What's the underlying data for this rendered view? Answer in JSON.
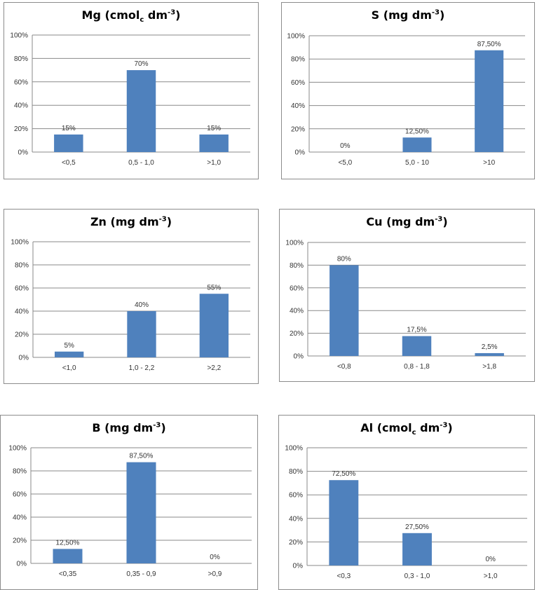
{
  "chart_data": [
    {
      "type": "bar",
      "title": {
        "main": "Mg (cmol",
        "sub": "c",
        "tail": " dm",
        "sup": "-3",
        "end": ")"
      },
      "categories": [
        "<0,5",
        "0,5 - 1,0",
        ">1,0"
      ],
      "values": [
        15,
        70,
        15
      ],
      "labels": [
        "15%",
        "70%",
        "15%"
      ],
      "yticks": [
        "0%",
        "20%",
        "40%",
        "60%",
        "80%",
        "100%"
      ],
      "ylim": [
        0,
        100
      ],
      "color": "#4f81bd"
    },
    {
      "type": "bar",
      "title": {
        "main": "S (mg dm",
        "sub": "",
        "tail": "",
        "sup": "-3",
        "end": ")"
      },
      "categories": [
        "<5,0",
        "5,0 - 10",
        ">10"
      ],
      "values": [
        0,
        12.5,
        87.5
      ],
      "labels": [
        "0%",
        "12,50%",
        "87,50%"
      ],
      "yticks": [
        "0%",
        "20%",
        "40%",
        "60%",
        "80%",
        "100%"
      ],
      "ylim": [
        0,
        100
      ],
      "color": "#4f81bd"
    },
    {
      "type": "bar",
      "title": {
        "main": "Zn (mg dm",
        "sub": "",
        "tail": "",
        "sup": "-3",
        "end": ")"
      },
      "categories": [
        "<1,0",
        "1,0 - 2,2",
        ">2,2"
      ],
      "values": [
        5,
        40,
        55
      ],
      "labels": [
        "5%",
        "40%",
        "55%"
      ],
      "yticks": [
        "0%",
        "20%",
        "40%",
        "60%",
        "80%",
        "100%"
      ],
      "ylim": [
        0,
        100
      ],
      "color": "#4f81bd"
    },
    {
      "type": "bar",
      "title": {
        "main": "Cu (mg dm",
        "sub": "",
        "tail": "",
        "sup": "-3",
        "end": ")"
      },
      "categories": [
        "<0,8",
        "0,8 - 1,8",
        ">1,8"
      ],
      "values": [
        80,
        17.5,
        2.5
      ],
      "labels": [
        "80%",
        "17,5%",
        "2,5%"
      ],
      "yticks": [
        "0%",
        "20%",
        "40%",
        "60%",
        "80%",
        "100%"
      ],
      "ylim": [
        0,
        100
      ],
      "color": "#4f81bd"
    },
    {
      "type": "bar",
      "title": {
        "main": "B (mg dm",
        "sub": "",
        "tail": "",
        "sup": "-3",
        "end": ")"
      },
      "categories": [
        "<0,35",
        "0,35 - 0,9",
        ">0,9"
      ],
      "values": [
        12.5,
        87.5,
        0
      ],
      "labels": [
        "12,50%",
        "87,50%",
        "0%"
      ],
      "yticks": [
        "0%",
        "20%",
        "40%",
        "60%",
        "80%",
        "100%"
      ],
      "ylim": [
        0,
        100
      ],
      "color": "#4f81bd"
    },
    {
      "type": "bar",
      "title": {
        "main": "Al (cmol",
        "sub": "c",
        "tail": " dm",
        "sup": "-3",
        "end": ")"
      },
      "categories": [
        "<0,3",
        "0,3 - 1,0",
        ">1,0"
      ],
      "values": [
        72.5,
        27.5,
        0
      ],
      "labels": [
        "72,50%",
        "27,50%",
        "0%"
      ],
      "yticks": [
        "0%",
        "20%",
        "40%",
        "60%",
        "80%",
        "100%"
      ],
      "ylim": [
        0,
        100
      ],
      "color": "#4f81bd"
    }
  ]
}
